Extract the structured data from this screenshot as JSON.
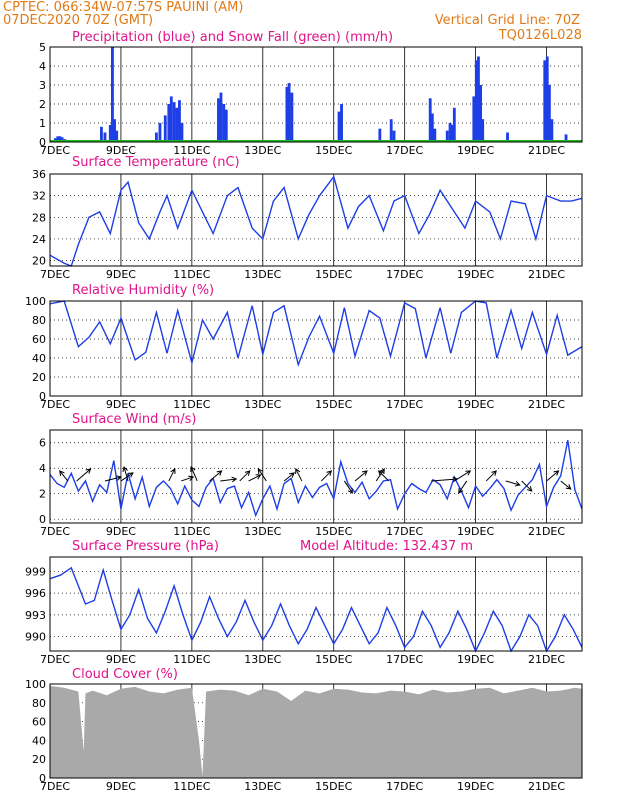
{
  "header": {
    "line1_left": "CPTEC:    066:34W-07:57S   PAUINI (AM)",
    "line2_left": "07DEC2020 70Z (GMT)",
    "line1_right": "Vertical Grid Line: 70Z",
    "line2_right": "TQ0126L028"
  },
  "colors": {
    "header": "#e07b18",
    "title": "#e0148a",
    "line": "#1e3ee6",
    "precip": "#1e3ee6",
    "snow": "#1fb81f",
    "cloud": "#a9a9a9"
  },
  "x_axis": {
    "domain": [
      0,
      15
    ],
    "tick_positions": [
      0,
      2,
      4,
      6,
      8,
      10,
      12,
      14
    ],
    "tick_labels": [
      "7DEC",
      "9DEC",
      "11DEC",
      "13DEC",
      "15DEC",
      "17DEC",
      "19DEC",
      "21DEC"
    ]
  },
  "chart_data": [
    {
      "id": "precip",
      "type": "bar",
      "title": "Precipitation (blue) and Snow Fall (green) (mm/h)",
      "ylim": [
        0,
        5
      ],
      "yticks": [
        0,
        1,
        2,
        3,
        4,
        5
      ],
      "bar_width": 0.08,
      "x": [
        0.15,
        0.22,
        0.28,
        0.34,
        0.42,
        1.45,
        1.55,
        1.7,
        1.76,
        1.82,
        1.88,
        3.0,
        3.1,
        3.25,
        3.35,
        3.42,
        3.5,
        3.58,
        3.65,
        3.72,
        4.75,
        4.82,
        4.9,
        4.97,
        6.68,
        6.74,
        6.82,
        8.15,
        8.22,
        9.3,
        9.62,
        9.7,
        10.72,
        10.78,
        10.85,
        11.2,
        11.28,
        11.34,
        11.4,
        11.95,
        12.02,
        12.08,
        12.14,
        12.2,
        12.9,
        13.95,
        14.02,
        14.08,
        14.15,
        14.55
      ],
      "values": [
        0.2,
        0.3,
        0.3,
        0.25,
        0.15,
        0.8,
        0.5,
        0.9,
        5.0,
        1.2,
        0.6,
        0.5,
        1.0,
        1.4,
        2.0,
        2.4,
        2.1,
        1.8,
        2.2,
        1.0,
        2.3,
        2.6,
        2.0,
        1.7,
        2.9,
        3.1,
        2.6,
        1.6,
        2.0,
        0.7,
        1.2,
        0.6,
        2.3,
        1.5,
        0.7,
        0.6,
        1.0,
        0.9,
        1.8,
        2.4,
        4.3,
        4.5,
        3.0,
        1.2,
        0.5,
        4.3,
        4.5,
        3.0,
        1.2,
        0.4
      ]
    },
    {
      "id": "temp",
      "type": "line",
      "title": "Surface Temperature (nC)",
      "ylim": [
        19,
        36
      ],
      "yticks": [
        20,
        24,
        28,
        32,
        36
      ],
      "x": [
        0,
        0.4,
        0.6,
        0.8,
        1.1,
        1.4,
        1.7,
        2.0,
        2.2,
        2.5,
        2.8,
        3.1,
        3.3,
        3.6,
        4.0,
        4.3,
        4.6,
        5.0,
        5.3,
        5.7,
        6.0,
        6.3,
        6.6,
        7.0,
        7.3,
        7.6,
        8.0,
        8.4,
        8.7,
        9.0,
        9.4,
        9.7,
        10.0,
        10.4,
        10.7,
        11.0,
        11.4,
        11.7,
        12.0,
        12.4,
        12.7,
        13.0,
        13.4,
        13.7,
        14.0,
        14.4,
        14.7,
        15.0
      ],
      "values": [
        21,
        19.5,
        19,
        23,
        28,
        29,
        25,
        33,
        34.5,
        27,
        24,
        29,
        32,
        26,
        33,
        29,
        25,
        32,
        33.5,
        26,
        24,
        31,
        33.5,
        24,
        28.5,
        32,
        35.5,
        26,
        30,
        32,
        25.5,
        31,
        32,
        25,
        28.5,
        33,
        29,
        26,
        31,
        29,
        24,
        31,
        30.5,
        24,
        32,
        31,
        31,
        31.5
      ]
    },
    {
      "id": "rh",
      "type": "line",
      "title": "Relative Humidity (%)",
      "ylim": [
        0,
        100
      ],
      "yticks": [
        0,
        20,
        40,
        60,
        80,
        100
      ],
      "x": [
        0,
        0.4,
        0.8,
        1.1,
        1.4,
        1.7,
        2.0,
        2.4,
        2.7,
        3.0,
        3.3,
        3.6,
        4.0,
        4.3,
        4.6,
        5.0,
        5.3,
        5.7,
        6.0,
        6.3,
        6.6,
        7.0,
        7.3,
        7.6,
        8.0,
        8.3,
        8.6,
        9.0,
        9.3,
        9.6,
        10.0,
        10.3,
        10.6,
        11.0,
        11.3,
        11.6,
        12.0,
        12.3,
        12.6,
        13.0,
        13.3,
        13.6,
        14.0,
        14.3,
        14.6,
        15.0
      ],
      "values": [
        97,
        100,
        52,
        62,
        78,
        55,
        82,
        38,
        46,
        88,
        45,
        90,
        35,
        80,
        60,
        88,
        40,
        95,
        44,
        88,
        95,
        33,
        62,
        84,
        45,
        93,
        42,
        90,
        82,
        42,
        98,
        92,
        40,
        93,
        45,
        88,
        100,
        98,
        40,
        90,
        50,
        88,
        44,
        85,
        43,
        52
      ]
    },
    {
      "id": "wind",
      "type": "line",
      "title": "Surface Wind (m/s)",
      "ylim": [
        -0.3,
        7
      ],
      "yticks": [
        0,
        2,
        4,
        6
      ],
      "x": [
        0,
        0.2,
        0.4,
        0.6,
        0.8,
        1.0,
        1.2,
        1.4,
        1.6,
        1.8,
        2.0,
        2.2,
        2.4,
        2.6,
        2.8,
        3.0,
        3.2,
        3.4,
        3.6,
        3.8,
        4.0,
        4.2,
        4.4,
        4.6,
        4.8,
        5.0,
        5.2,
        5.4,
        5.6,
        5.8,
        6.0,
        6.2,
        6.4,
        6.6,
        6.8,
        7.0,
        7.2,
        7.4,
        7.6,
        7.8,
        8.0,
        8.2,
        8.4,
        8.6,
        8.8,
        9.0,
        9.2,
        9.4,
        9.6,
        9.8,
        10.0,
        10.2,
        10.4,
        10.6,
        10.8,
        11.0,
        11.2,
        11.4,
        11.6,
        11.8,
        12.0,
        12.2,
        12.4,
        12.6,
        12.8,
        13.0,
        13.2,
        13.4,
        13.6,
        13.8,
        14.0,
        14.2,
        14.4,
        14.6,
        14.8,
        15.0
      ],
      "values": [
        3.5,
        2.8,
        2.5,
        3.6,
        2.2,
        3.0,
        1.4,
        2.7,
        2.1,
        4.6,
        0.8,
        3.6,
        1.6,
        3.3,
        1.0,
        2.5,
        3.0,
        2.4,
        1.2,
        2.6,
        1.5,
        1.0,
        2.5,
        3.2,
        1.3,
        2.4,
        2.6,
        0.9,
        2.1,
        0.3,
        1.6,
        2.6,
        0.8,
        2.8,
        3.2,
        1.3,
        2.6,
        1.7,
        2.5,
        2.8,
        1.6,
        4.5,
        2.8,
        2.1,
        2.9,
        1.6,
        2.2,
        3.0,
        3.1,
        0.8,
        2.0,
        2.8,
        2.4,
        2.1,
        3.1,
        2.7,
        1.6,
        3.3,
        2.2,
        0.9,
        2.6,
        1.8,
        2.4,
        3.1,
        2.4,
        0.7,
        1.9,
        2.5,
        3.1,
        4.3,
        1.0,
        2.5,
        3.4,
        6.2,
        2.3,
        0.8
      ],
      "vectors": [
        {
          "x": 0.5,
          "u": -0.4,
          "v": 0.5
        },
        {
          "x": 0.75,
          "u": 0.7,
          "v": 0.6
        },
        {
          "x": 1.55,
          "u": 0.8,
          "v": 0.2
        },
        {
          "x": 2.0,
          "u": 0.6,
          "v": 0.4
        },
        {
          "x": 2.2,
          "u": -0.2,
          "v": 0.7
        },
        {
          "x": 3.35,
          "u": 0.3,
          "v": 0.6
        },
        {
          "x": 3.7,
          "u": 0.6,
          "v": 0.2
        },
        {
          "x": 4.15,
          "u": -0.3,
          "v": 0.7
        },
        {
          "x": 4.5,
          "u": 0.6,
          "v": 0.5
        },
        {
          "x": 4.8,
          "u": 0.8,
          "v": 0.1
        },
        {
          "x": 5.35,
          "u": 0.5,
          "v": 0.5
        },
        {
          "x": 5.6,
          "u": 0.6,
          "v": 0.3
        },
        {
          "x": 6.1,
          "u": -0.4,
          "v": 0.6
        },
        {
          "x": 6.6,
          "u": 0.5,
          "v": 0.4
        },
        {
          "x": 7.1,
          "u": -0.3,
          "v": 0.6
        },
        {
          "x": 7.65,
          "u": 0.5,
          "v": 0.5
        },
        {
          "x": 8.3,
          "u": 0.4,
          "v": -0.6
        },
        {
          "x": 8.6,
          "u": 0.6,
          "v": 0.5
        },
        {
          "x": 9.2,
          "u": 0.4,
          "v": 0.6
        },
        {
          "x": 9.55,
          "u": -0.5,
          "v": 0.5
        },
        {
          "x": 10.75,
          "u": 1.3,
          "v": 0.1
        },
        {
          "x": 11.4,
          "u": 0.8,
          "v": 0.5
        },
        {
          "x": 11.75,
          "u": -0.4,
          "v": -0.6
        },
        {
          "x": 12.3,
          "u": 0.5,
          "v": 0.5
        },
        {
          "x": 12.85,
          "u": 0.7,
          "v": -0.2
        },
        {
          "x": 13.3,
          "u": 0.5,
          "v": -0.5
        },
        {
          "x": 14.0,
          "u": 0.6,
          "v": 0.5
        },
        {
          "x": 14.4,
          "u": 0.5,
          "v": -0.4
        }
      ]
    },
    {
      "id": "pressure",
      "type": "line",
      "title": "Surface Pressure (hPa)",
      "title_extra": "Model Altitude: 132.437  m",
      "ylim": [
        988,
        1001
      ],
      "yticks": [
        990,
        993,
        996,
        999
      ],
      "x": [
        0,
        0.3,
        0.6,
        0.8,
        1.0,
        1.25,
        1.5,
        1.75,
        2.0,
        2.25,
        2.5,
        2.75,
        3.0,
        3.25,
        3.5,
        3.75,
        4.0,
        4.25,
        4.5,
        4.75,
        5.0,
        5.25,
        5.5,
        5.75,
        6.0,
        6.25,
        6.5,
        6.75,
        7.0,
        7.25,
        7.5,
        7.75,
        8.0,
        8.25,
        8.5,
        8.75,
        9.0,
        9.25,
        9.5,
        9.75,
        10.0,
        10.25,
        10.5,
        10.75,
        11.0,
        11.25,
        11.5,
        11.75,
        12.0,
        12.25,
        12.5,
        12.75,
        13.0,
        13.25,
        13.5,
        13.75,
        14.0,
        14.25,
        14.5,
        14.75,
        15.0
      ],
      "values": [
        998,
        998.5,
        999.5,
        997,
        994.5,
        995,
        999.2,
        995,
        991,
        993,
        996.5,
        992.5,
        990.5,
        993.5,
        997,
        993,
        989.5,
        992,
        995.5,
        992.5,
        990,
        992,
        995,
        992,
        989.5,
        991.5,
        994.5,
        991.5,
        989,
        991,
        994,
        991.5,
        989,
        991,
        994,
        991.5,
        989,
        990.5,
        994,
        991.5,
        988.5,
        990,
        993.5,
        991.5,
        988.5,
        990.5,
        993.5,
        991,
        988,
        990.5,
        993.5,
        991.5,
        988,
        990,
        993,
        991.5,
        988,
        990,
        993,
        991,
        988.5
      ]
    },
    {
      "id": "cloud",
      "type": "area",
      "title": "Cloud Cover (%)",
      "ylim": [
        0,
        100
      ],
      "yticks": [
        0,
        20,
        40,
        60,
        80,
        100
      ],
      "x": [
        0,
        0.4,
        0.8,
        0.95,
        1.0,
        1.2,
        1.6,
        2.0,
        2.4,
        2.8,
        3.2,
        3.6,
        4.0,
        4.2,
        4.3,
        4.4,
        4.8,
        5.2,
        5.6,
        6.0,
        6.4,
        6.8,
        7.2,
        7.6,
        8.0,
        8.4,
        8.8,
        9.2,
        9.6,
        10.0,
        10.4,
        10.8,
        11.2,
        11.6,
        12.0,
        12.4,
        12.8,
        13.2,
        13.6,
        14.0,
        14.4,
        14.8,
        15.0
      ],
      "values": [
        98,
        96,
        92,
        28,
        90,
        93,
        88,
        95,
        97,
        92,
        90,
        94,
        96,
        40,
        2,
        92,
        94,
        93,
        88,
        95,
        92,
        82,
        93,
        90,
        95,
        94,
        91,
        90,
        93,
        92,
        89,
        94,
        91,
        92,
        95,
        96,
        90,
        93,
        96,
        92,
        93,
        96,
        95
      ]
    }
  ]
}
